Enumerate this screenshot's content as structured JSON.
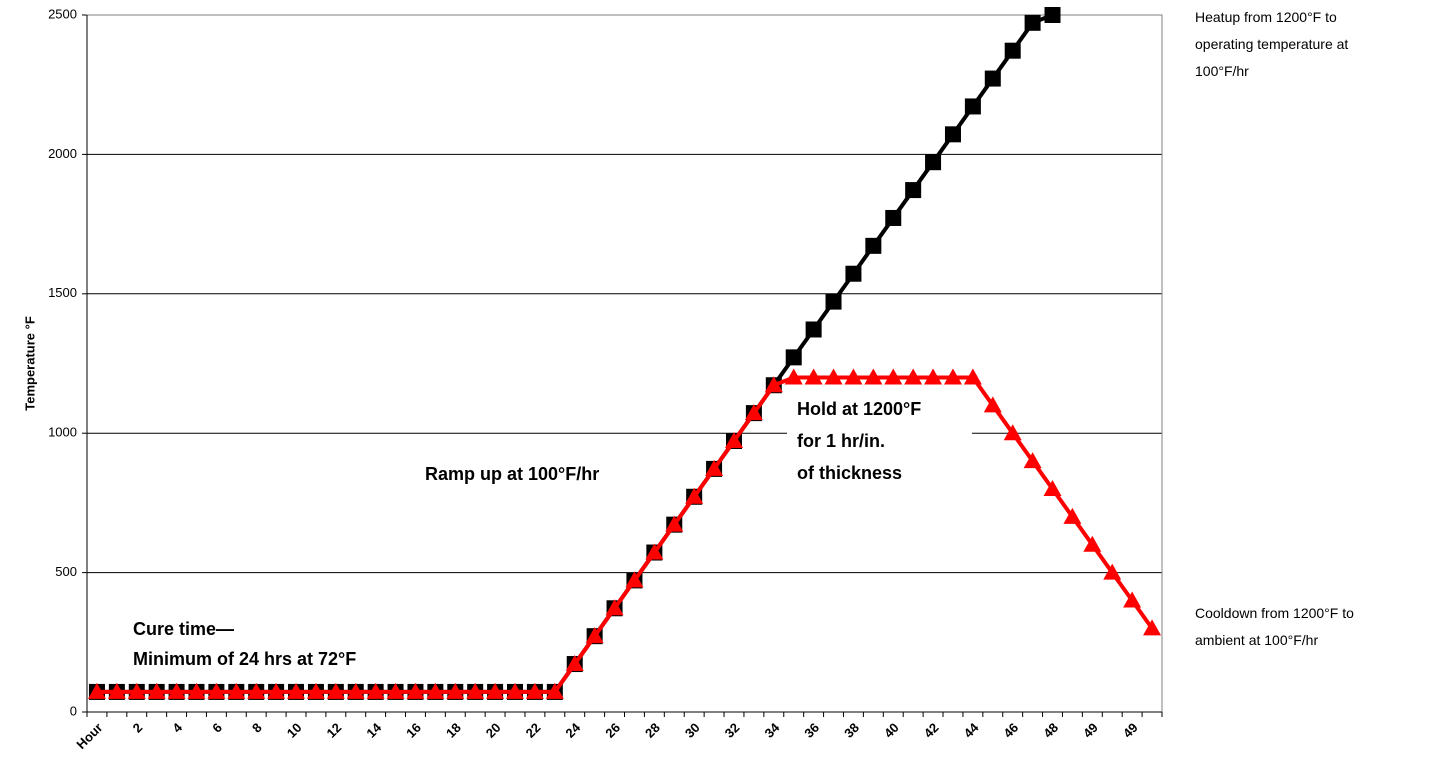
{
  "chart_data": {
    "type": "line",
    "y_label": "Temperature °F",
    "categories": [
      "Hour",
      null,
      "2",
      null,
      "4",
      null,
      "6",
      null,
      "8",
      null,
      "10",
      null,
      "12",
      null,
      "14",
      null,
      "16",
      null,
      "18",
      null,
      "20",
      null,
      "22",
      null,
      "24",
      null,
      "26",
      null,
      "28",
      null,
      "30",
      null,
      "32",
      null,
      "34",
      null,
      "36",
      null,
      "38",
      null,
      "40",
      null,
      "42",
      null,
      "44",
      null,
      "46",
      null,
      "48",
      null,
      "49",
      null,
      "49",
      null
    ],
    "series": [
      {
        "name": "Heatup from 1200°F to operating temperature at 100°F/hr",
        "color": "#000000",
        "marker": "square",
        "values": [
          72,
          72,
          72,
          72,
          72,
          72,
          72,
          72,
          72,
          72,
          72,
          72,
          72,
          72,
          72,
          72,
          72,
          72,
          72,
          72,
          72,
          72,
          72,
          72,
          172,
          272,
          372,
          472,
          572,
          672,
          772,
          872,
          972,
          1072,
          1172,
          1272,
          1372,
          1472,
          1572,
          1672,
          1772,
          1872,
          1972,
          2072,
          2172,
          2272,
          2372,
          2472,
          2500,
          null,
          null,
          null,
          null,
          null
        ]
      },
      {
        "name": "Cooldown from 1200°F to ambient at 100°F/hr",
        "color": "#ff0000",
        "marker": "triangle",
        "values": [
          72,
          72,
          72,
          72,
          72,
          72,
          72,
          72,
          72,
          72,
          72,
          72,
          72,
          72,
          72,
          72,
          72,
          72,
          72,
          72,
          72,
          72,
          72,
          72,
          172,
          272,
          372,
          472,
          572,
          672,
          772,
          872,
          972,
          1072,
          1172,
          1200,
          1200,
          1200,
          1200,
          1200,
          1200,
          1200,
          1200,
          1200,
          1200,
          1100,
          1000,
          900,
          800,
          700,
          600,
          500,
          400,
          300
        ]
      }
    ],
    "ylim": [
      0,
      2500
    ],
    "yticks": [
      0,
      500,
      1000,
      1500,
      2000,
      2500
    ],
    "grid": true,
    "annotations": [
      {
        "lines": [
          "Cure time—",
          "Minimum of 24 hrs at 72°F"
        ]
      },
      {
        "lines": [
          "Ramp up at 100°F/hr"
        ]
      },
      {
        "lines": [
          "Hold at 1200°F",
          "for 1 hr/in.",
          "of thickness"
        ]
      }
    ]
  }
}
